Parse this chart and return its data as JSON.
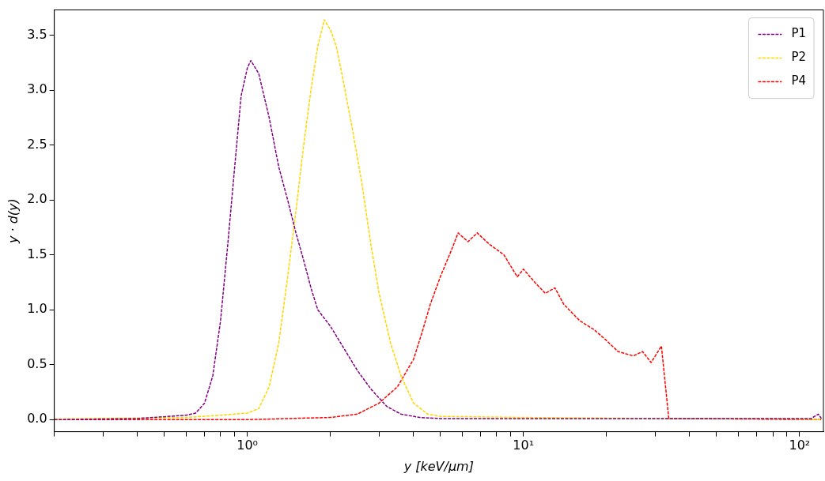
{
  "chart_data": {
    "type": "line",
    "xlabel": "y [keV/μm]",
    "ylabel": "y · d(y)",
    "log": "x",
    "xlim": [
      0.2,
      122
    ],
    "ylim": [
      -0.11,
      3.73
    ],
    "xticks": [
      {
        "value": 0.2,
        "label": null
      },
      {
        "value": 0.3,
        "label": null
      },
      {
        "value": 0.4,
        "label": null
      },
      {
        "value": 0.5,
        "label": null
      },
      {
        "value": 0.6,
        "label": null
      },
      {
        "value": 0.7,
        "label": null
      },
      {
        "value": 0.8,
        "label": null
      },
      {
        "value": 0.9,
        "label": null
      },
      {
        "value": 1,
        "label": "10⁰"
      },
      {
        "value": 2,
        "label": null
      },
      {
        "value": 3,
        "label": null
      },
      {
        "value": 4,
        "label": null
      },
      {
        "value": 5,
        "label": null
      },
      {
        "value": 6,
        "label": null
      },
      {
        "value": 7,
        "label": null
      },
      {
        "value": 8,
        "label": null
      },
      {
        "value": 9,
        "label": null
      },
      {
        "value": 10,
        "label": "10¹"
      },
      {
        "value": 20,
        "label": null
      },
      {
        "value": 30,
        "label": null
      },
      {
        "value": 40,
        "label": null
      },
      {
        "value": 50,
        "label": null
      },
      {
        "value": 60,
        "label": null
      },
      {
        "value": 70,
        "label": null
      },
      {
        "value": 80,
        "label": null
      },
      {
        "value": 90,
        "label": null
      },
      {
        "value": 100,
        "label": "10²"
      }
    ],
    "yticks": [
      {
        "value": 0,
        "label": "0.0"
      },
      {
        "value": 0.5,
        "label": "0.5"
      },
      {
        "value": 1,
        "label": "1.0"
      },
      {
        "value": 1.5,
        "label": "1.5"
      },
      {
        "value": 2,
        "label": "2.0"
      },
      {
        "value": 2.5,
        "label": "2.5"
      },
      {
        "value": 3,
        "label": "3.0"
      },
      {
        "value": 3.5,
        "label": "3.5"
      }
    ],
    "grid": false,
    "legend": "top right",
    "line_style": "dashed",
    "marker": "none",
    "series": [
      {
        "name": "P1",
        "color": "#800080",
        "x": [
          0.2,
          0.4,
          0.6,
          0.65,
          0.7,
          0.75,
          0.8,
          0.85,
          0.9,
          0.95,
          1.0,
          1.03,
          1.1,
          1.2,
          1.3,
          1.4,
          1.5,
          1.6,
          1.7,
          1.8,
          2.0,
          2.2,
          2.5,
          2.8,
          3.2,
          3.6,
          4.2,
          5,
          10,
          30,
          60,
          110,
          117,
          120
        ],
        "values": [
          0.0,
          0.01,
          0.04,
          0.06,
          0.15,
          0.4,
          0.9,
          1.6,
          2.3,
          2.95,
          3.2,
          3.27,
          3.15,
          2.75,
          2.3,
          2.0,
          1.7,
          1.45,
          1.2,
          1.0,
          0.85,
          0.68,
          0.45,
          0.28,
          0.12,
          0.05,
          0.02,
          0.01,
          0.01,
          0.01,
          0.01,
          0.01,
          0.05,
          0.01
        ]
      },
      {
        "name": "P2",
        "color": "#ffd700",
        "x": [
          0.2,
          0.6,
          0.8,
          1.0,
          1.1,
          1.2,
          1.3,
          1.4,
          1.5,
          1.6,
          1.7,
          1.8,
          1.9,
          2.0,
          2.1,
          2.2,
          2.4,
          2.6,
          2.8,
          3.0,
          3.3,
          3.6,
          4.0,
          4.5,
          5,
          10,
          30,
          80,
          120
        ],
        "values": [
          0.005,
          0.02,
          0.04,
          0.06,
          0.1,
          0.3,
          0.7,
          1.3,
          1.9,
          2.5,
          3.0,
          3.4,
          3.64,
          3.55,
          3.4,
          3.15,
          2.65,
          2.15,
          1.6,
          1.15,
          0.7,
          0.4,
          0.15,
          0.05,
          0.03,
          0.02,
          0.01,
          0.01,
          0.0
        ]
      },
      {
        "name": "P4",
        "color": "#ff0000",
        "x": [
          0.2,
          1.0,
          2.0,
          2.5,
          3.0,
          3.5,
          4.0,
          4.3,
          4.6,
          5.0,
          5.5,
          5.8,
          6.3,
          6.8,
          7.5,
          8.5,
          9.5,
          10,
          11,
          12,
          13,
          14,
          16,
          18,
          20,
          22,
          25,
          27,
          29,
          31.6,
          33.6,
          40,
          121
        ],
        "values": [
          0.0,
          0.0,
          0.02,
          0.05,
          0.15,
          0.3,
          0.55,
          0.8,
          1.05,
          1.3,
          1.55,
          1.7,
          1.62,
          1.7,
          1.6,
          1.5,
          1.3,
          1.37,
          1.25,
          1.15,
          1.2,
          1.05,
          0.9,
          0.82,
          0.72,
          0.62,
          0.58,
          0.62,
          0.52,
          0.67,
          0.01,
          0.01,
          0.0
        ]
      }
    ]
  }
}
